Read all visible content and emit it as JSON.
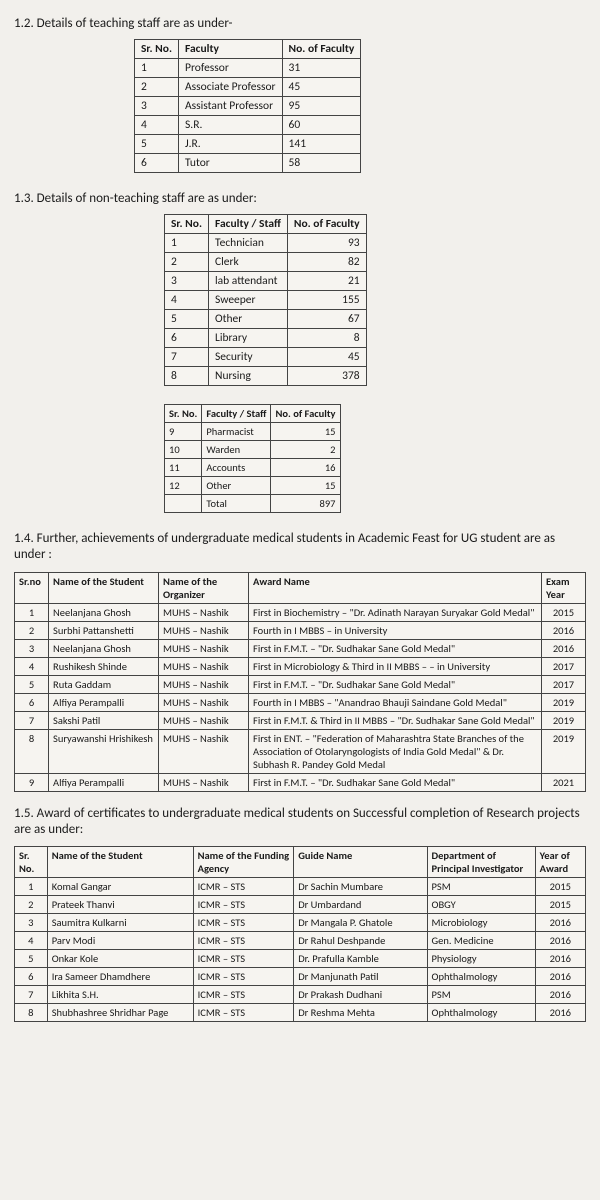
{
  "section12": {
    "heading": "1.2.   Details of teaching staff are as under-",
    "cols": [
      "Sr. No.",
      "Faculty",
      "No. of Faculty"
    ],
    "rows": [
      [
        "1",
        "Professor",
        "31"
      ],
      [
        "2",
        "Associate Professor",
        "45"
      ],
      [
        "3",
        "Assistant Professor",
        "95"
      ],
      [
        "4",
        "S.R.",
        "60"
      ],
      [
        "5",
        "J.R.",
        "141"
      ],
      [
        "6",
        "Tutor",
        "58"
      ]
    ]
  },
  "section13": {
    "heading": "1.3.   Details of non-teaching staff are as under:",
    "cols": [
      "Sr. No.",
      "Faculty / Staff",
      "No. of Faculty"
    ],
    "rowsA": [
      [
        "1",
        "Technician",
        "93"
      ],
      [
        "2",
        "Clerk",
        "82"
      ],
      [
        "3",
        "lab attendant",
        "21"
      ],
      [
        "4",
        "Sweeper",
        "155"
      ],
      [
        "5",
        "Other",
        "67"
      ],
      [
        "6",
        "Library",
        "8"
      ],
      [
        "7",
        "Security",
        "45"
      ],
      [
        "8",
        "Nursing",
        "378"
      ]
    ],
    "rowsB": [
      [
        "9",
        "Pharmacist",
        "15"
      ],
      [
        "10",
        "Warden",
        "2"
      ],
      [
        "11",
        "Accounts",
        "16"
      ],
      [
        "12",
        "Other",
        "15"
      ],
      [
        "",
        "Total",
        "897"
      ]
    ]
  },
  "section14": {
    "heading": "1.4.   Further, achievements of undergraduate medical students in Academic Feast for UG student are as under  :",
    "cols": [
      "Sr.no",
      "Name of the Student",
      "Name of the Organizer",
      "Award Name",
      "Exam Year"
    ],
    "rows": [
      [
        "1",
        "Neelanjana Ghosh",
        "MUHS – Nashik",
        "First in Biochemistry – \"Dr. Adinath Narayan Suryakar Gold Medal\"",
        "2015"
      ],
      [
        "2",
        "Surbhi Pattanshetti",
        "MUHS – Nashik",
        "Fourth in I MBBS – in University",
        "2016"
      ],
      [
        "3",
        "Neelanjana Ghosh",
        "MUHS – Nashik",
        "First in F.M.T. – \"Dr. Sudhakar Sane Gold Medal\"",
        "2016"
      ],
      [
        "4",
        "Rushikesh Shinde",
        "MUHS – Nashik",
        "First in Microbiology & Third in II MBBS – – in University",
        "2017"
      ],
      [
        "5",
        "Ruta Gaddam",
        "MUHS – Nashik",
        "First in F.M.T. – \"Dr. Sudhakar Sane Gold Medal\"",
        "2017"
      ],
      [
        "6",
        "Alfiya Perampalli",
        "MUHS – Nashik",
        "Fourth in I MBBS – \"Anandrao Bhauji Saindane Gold Medal\"",
        "2019"
      ],
      [
        "7",
        "Sakshi Patil",
        "MUHS – Nashik",
        "First in F.M.T. & Third in II MBBS – \"Dr. Sudhakar Sane Gold Medal\"",
        "2019"
      ],
      [
        "8",
        "Suryawanshi Hrishikesh",
        "MUHS – Nashik",
        "First in ENT. – \"Federation of Maharashtra State Branches of the Association of Otolaryngologists of India Gold Medal\" & Dr. Subhash R. Pandey Gold Medal",
        "2019"
      ],
      [
        "9",
        "Alfiya Perampalli",
        "MUHS – Nashik",
        "First in F.M.T. – \"Dr. Sudhakar Sane Gold Medal\"",
        "2021"
      ]
    ]
  },
  "section15": {
    "heading": "1.5.   Award of certificates to undergraduate medical students on Successful completion of Research projects are as under:",
    "cols": [
      "Sr. No.",
      "Name of the Student",
      "Name of the Funding Agency",
      "Guide Name",
      "Department of Principal Investigator",
      "Year of Award"
    ],
    "rows": [
      [
        "1",
        "Komal Gangar",
        "ICMR – STS",
        "Dr Sachin Mumbare",
        "PSM",
        "2015"
      ],
      [
        "2",
        "Prateek Thanvi",
        "ICMR – STS",
        "Dr Umbardand",
        "OBGY",
        "2015"
      ],
      [
        "3",
        "Saumitra Kulkarni",
        "ICMR – STS",
        "Dr Mangala P. Ghatole",
        "Microbiology",
        "2016"
      ],
      [
        "4",
        "Parv Modi",
        "ICMR – STS",
        "Dr Rahul Deshpande",
        "Gen. Medicine",
        "2016"
      ],
      [
        "5",
        "Onkar Kole",
        "ICMR – STS",
        "Dr. Prafulla Kamble",
        "Physiology",
        "2016"
      ],
      [
        "6",
        "Ira Sameer Dhamdhere",
        "ICMR – STS",
        "Dr Manjunath Patil",
        "Ophthalmology",
        "2016"
      ],
      [
        "7",
        "Likhita S.H.",
        "ICMR – STS",
        "Dr Prakash Dudhani",
        "PSM",
        "2016"
      ],
      [
        "8",
        "Shubhashree Shridhar Page",
        "ICMR – STS",
        "Dr Reshma Mehta",
        "Ophthalmology",
        "2016"
      ]
    ]
  },
  "colwidths": {
    "awards": [
      "34px",
      "110px",
      "90px",
      "",
      "44px"
    ],
    "research": [
      "26px",
      "116px",
      "80px",
      "106px",
      "86px",
      "40px"
    ]
  }
}
